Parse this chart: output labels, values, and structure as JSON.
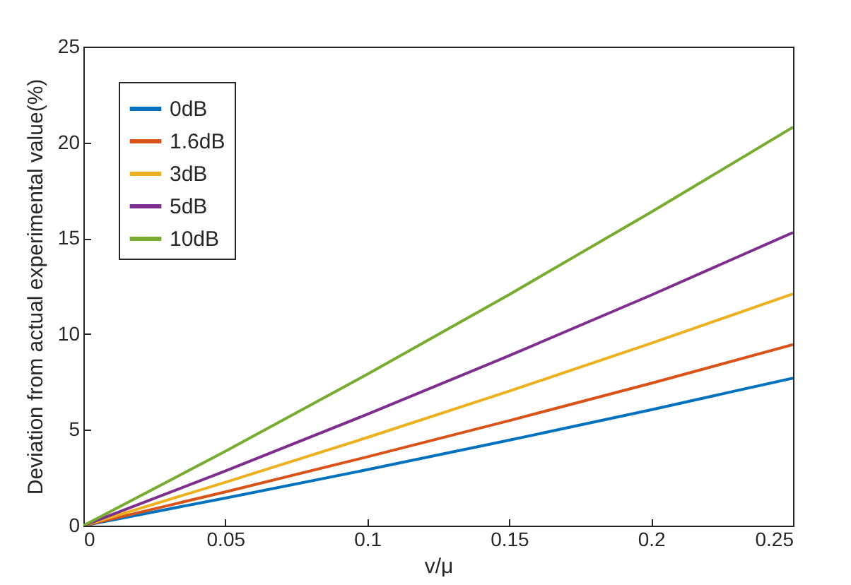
{
  "chart_data": {
    "type": "line",
    "xlabel": "v/μ",
    "ylabel": "Deviation from actual experimental value(%)",
    "x": [
      0,
      0.05,
      0.1,
      0.15,
      0.2,
      0.25
    ],
    "series": [
      {
        "name": "0dB",
        "color": "#0072bd",
        "values": [
          0,
          1.44,
          2.92,
          4.46,
          6.05,
          7.7
        ]
      },
      {
        "name": "1.6dB",
        "color": "#d95319",
        "values": [
          0,
          1.76,
          3.59,
          5.48,
          7.43,
          9.45
        ]
      },
      {
        "name": "3dB",
        "color": "#edb120",
        "values": [
          0,
          2.26,
          4.6,
          7.02,
          9.52,
          12.1
        ]
      },
      {
        "name": "5dB",
        "color": "#7e2f8e",
        "values": [
          0,
          2.85,
          5.81,
          8.87,
          12.03,
          15.3
        ]
      },
      {
        "name": "10dB",
        "color": "#77ac30",
        "values": [
          0,
          3.88,
          7.9,
          12.06,
          16.36,
          20.8
        ]
      }
    ],
    "xlim": [
      0,
      0.25
    ],
    "xticks": [
      0,
      0.05,
      0.1,
      0.15,
      0.2,
      0.25
    ],
    "ylim": [
      0,
      25
    ],
    "yticks": [
      0,
      5,
      10,
      15,
      20,
      25
    ],
    "grid": false,
    "legend": "top left",
    "marker": "none",
    "line_style": "solid"
  }
}
